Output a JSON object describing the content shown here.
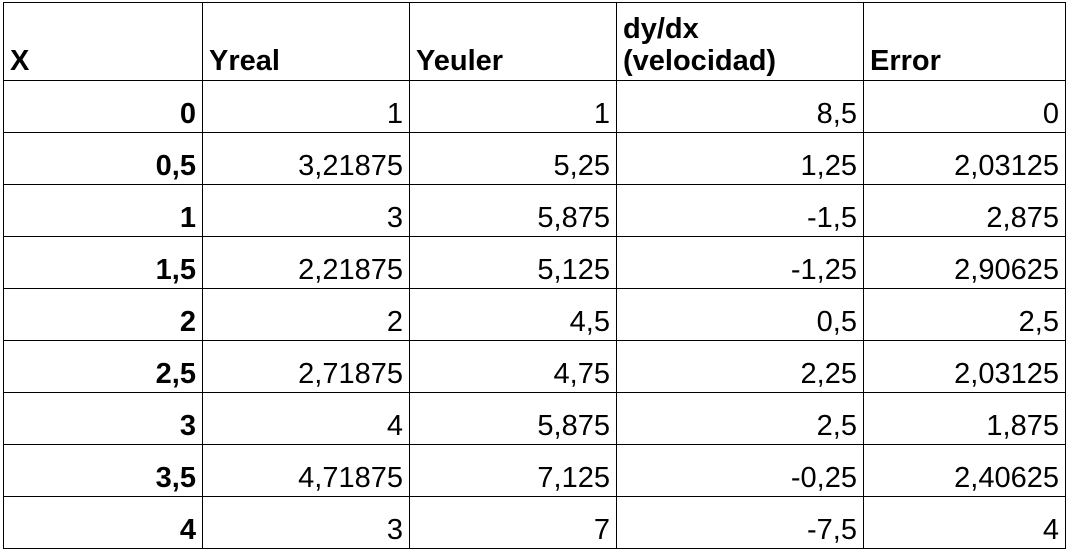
{
  "table": {
    "headers": [
      "X",
      "Yreal",
      "Yeuler",
      "dy/dx (velocidad)",
      "Error"
    ],
    "rows": [
      [
        "0",
        "1",
        "1",
        "8,5",
        "0"
      ],
      [
        "0,5",
        "3,21875",
        "5,25",
        "1,25",
        "2,03125"
      ],
      [
        "1",
        "3",
        "5,875",
        "-1,5",
        "2,875"
      ],
      [
        "1,5",
        "2,21875",
        "5,125",
        "-1,25",
        "2,90625"
      ],
      [
        "2",
        "2",
        "4,5",
        "0,5",
        "2,5"
      ],
      [
        "2,5",
        "2,71875",
        "4,75",
        "2,25",
        "2,03125"
      ],
      [
        "3",
        "4",
        "5,875",
        "2,5",
        "1,875"
      ],
      [
        "3,5",
        "4,71875",
        "7,125",
        "-0,25",
        "2,40625"
      ],
      [
        "4",
        "3",
        "7",
        "-7,5",
        "4"
      ]
    ]
  }
}
